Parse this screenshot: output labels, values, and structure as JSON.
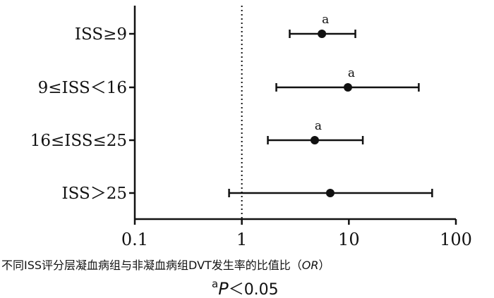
{
  "chart_data": {
    "type": "scatter",
    "subtype": "forest-plot",
    "title": "",
    "xlabel_prefix": "不同ISS评分层凝血病组与非凝血病组DVT发生率的比值比（",
    "xlabel_italic": "OR",
    "xlabel_suffix": "）",
    "ylabel": "",
    "x_scale": "log",
    "xlim": [
      0.1,
      100
    ],
    "x_ticks": [
      0.1,
      1,
      10,
      100
    ],
    "x_tick_labels": [
      "0.1",
      "1",
      "10",
      "100"
    ],
    "reference_line": 1,
    "categories": [
      "ISS≥9",
      "9≤ISS<16",
      "16≤ISS≤25",
      "ISS>25"
    ],
    "category_labels": [
      "ISS≥9",
      "9≤ISS＜16",
      "16≤ISS≤25",
      "ISS＞25"
    ],
    "or": [
      5.6,
      9.8,
      4.8,
      6.7
    ],
    "ci_lower": [
      2.8,
      2.1,
      1.75,
      0.76
    ],
    "ci_upper": [
      11.5,
      45,
      13.5,
      60
    ],
    "significance": [
      "a",
      "a",
      "a",
      ""
    ],
    "grid": false,
    "legend": "none"
  },
  "footnote": {
    "sup": "a",
    "italic": "P",
    "text": "＜0.05"
  },
  "colors": {
    "ink": "#111111"
  }
}
